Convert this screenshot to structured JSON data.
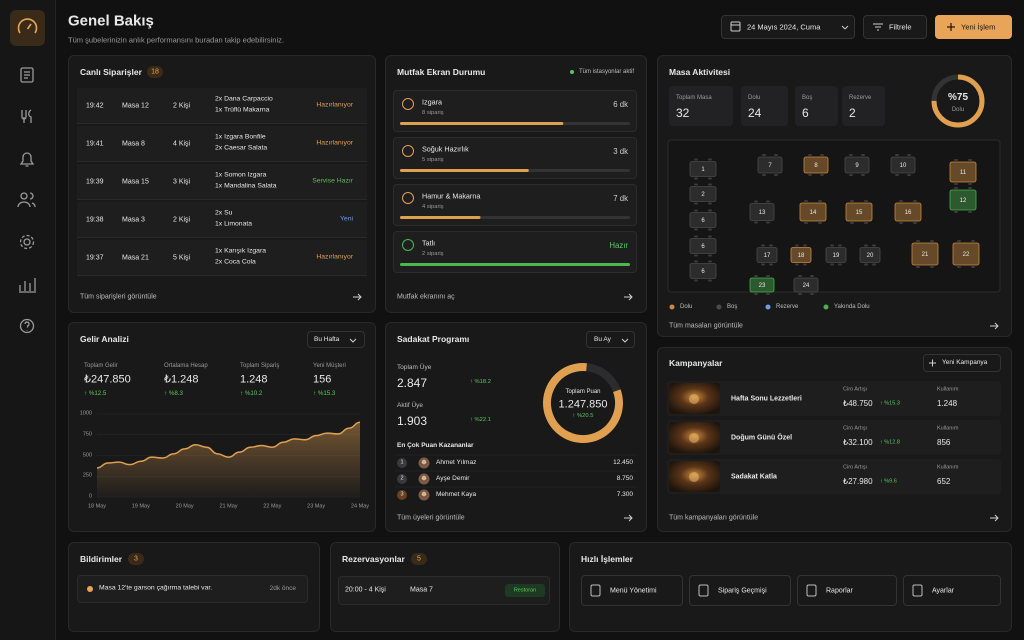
{
  "header": {
    "title": "Genel Bakış",
    "subtitle": "Tüm şubelerinizin anlık performansını buradan takip edebilirsiniz.",
    "date": "24 Mayıs 2024, Cuma",
    "filter": "Filtrele",
    "new_action": "Yeni İşlem"
  },
  "orders": {
    "title": "Canlı Siparişler",
    "count": "18",
    "footer": "Tüm siparişleri görüntüle",
    "rows": [
      {
        "time": "19:42",
        "table": "Masa 12",
        "guests": "2 Kişi",
        "items": [
          "2x Dana Carpaccio",
          "1x Trüflü Makarna"
        ],
        "status": "Hazırlanıyor",
        "status_color": "#e0a050"
      },
      {
        "time": "19:41",
        "table": "Masa 8",
        "guests": "4 Kişi",
        "items": [
          "1x Izgara Bonfile",
          "2x Caesar Salata"
        ],
        "status": "Hazırlanıyor",
        "status_color": "#e0a050"
      },
      {
        "time": "19:39",
        "table": "Masa 15",
        "guests": "3 Kişi",
        "items": [
          "1x Somon Izgara",
          "1x Mandalina Salata"
        ],
        "status": "Servise Hazır",
        "status_color": "#5cbf5c"
      },
      {
        "time": "19:38",
        "table": "Masa 3",
        "guests": "2 Kişi",
        "items": [
          "2x Su",
          "1x Limonata"
        ],
        "status": "Yeni",
        "status_color": "#6a9ee8"
      },
      {
        "time": "19:37",
        "table": "Masa 21",
        "guests": "5 Kişi",
        "items": [
          "1x Karışık Izgara",
          "2x Coca Cola"
        ],
        "status": "Hazırlanıyor",
        "status_color": "#e0a050"
      }
    ]
  },
  "kitchen": {
    "title": "Mutfak Ekran Durumu",
    "status": "Tüm istasyonlar aktif",
    "footer": "Mutfak ekranını aç",
    "stations": [
      {
        "name": "Izgara",
        "orders": "8 sipariş",
        "time": "6 dk",
        "progress": 71,
        "color": "#e0a050",
        "time_color": "#cfcfcf"
      },
      {
        "name": "Soğuk Hazırlık",
        "orders": "5 sipariş",
        "time": "3 dk",
        "progress": 56,
        "color": "#e0a050",
        "time_color": "#cfcfcf"
      },
      {
        "name": "Hamur & Makarna",
        "orders": "4 sipariş",
        "time": "7 dk",
        "progress": 35,
        "color": "#e0a050",
        "time_color": "#cfcfcf"
      },
      {
        "name": "Tatlı",
        "orders": "2 sipariş",
        "time": "Hazır",
        "progress": 100,
        "color": "#4cb84c",
        "time_color": "#5cc85c"
      }
    ]
  },
  "tables_card": {
    "title": "Masa Aktivitesi",
    "footer": "Tüm masaları görüntüle",
    "stats": [
      {
        "label": "Toplam Masa",
        "value": "32"
      },
      {
        "label": "Dolu",
        "value": "24"
      },
      {
        "label": "Boş",
        "value": "6"
      },
      {
        "label": "Rezerve",
        "value": "2"
      }
    ],
    "occupancy": 75,
    "occupancy_label": "%75",
    "occupancy_caption": "Dolu",
    "legend": [
      {
        "label": "Dolu",
        "color": "#c98a3e"
      },
      {
        "label": "Boş",
        "color": "#4a4a4a"
      },
      {
        "label": "Rezerve",
        "color": "#6a9ee8"
      },
      {
        "label": "Yakında Dolu",
        "color": "#4cae4c"
      }
    ],
    "tables": [
      {
        "label": "1",
        "color": "#4a4a4a"
      },
      {
        "label": "2",
        "color": "#4a4a4a"
      },
      {
        "label": "6",
        "color": "#4a4a4a"
      },
      {
        "label": "6",
        "color": "#4a4a4a"
      },
      {
        "label": "6",
        "color": "#4a4a4a"
      },
      {
        "label": "7",
        "color": "#4a4a4a"
      },
      {
        "label": "8",
        "color": "#c98a3e"
      },
      {
        "label": "9",
        "color": "#4a4a4a"
      },
      {
        "label": "10",
        "color": "#4a4a4a"
      },
      {
        "label": "11",
        "color": "#c98a3e"
      },
      {
        "label": "13",
        "color": "#4a4a4a"
      },
      {
        "label": "14",
        "color": "#c98a3e"
      },
      {
        "label": "15",
        "color": "#c98a3e"
      },
      {
        "label": "16",
        "color": "#c98a3e"
      },
      {
        "label": "12",
        "color": "#4cae4c"
      },
      {
        "label": "17",
        "color": "#4a4a4a"
      },
      {
        "label": "18",
        "color": "#c98a3e"
      },
      {
        "label": "19",
        "color": "#4a4a4a"
      },
      {
        "label": "20",
        "color": "#4a4a4a"
      },
      {
        "label": "21",
        "color": "#c98a3e"
      },
      {
        "label": "22",
        "color": "#c98a3e"
      },
      {
        "label": "23",
        "color": "#4cae4c"
      },
      {
        "label": "24",
        "color": "#4a4a4a"
      }
    ]
  },
  "revenue": {
    "title": "Gelir Analizi",
    "period": "Bu Hafta",
    "stats": [
      {
        "label": "Toplam Gelir",
        "value": "₺247.850",
        "change": "↑ %12.5"
      },
      {
        "label": "Ortalama Hesap",
        "value": "₺1.248",
        "change": "↑ %8.3"
      },
      {
        "label": "Toplam Sipariş",
        "value": "1.248",
        "change": "↑ %10.2"
      },
      {
        "label": "Yeni Müşteri",
        "value": "156",
        "change": "↑ %15.3"
      }
    ],
    "chart": {
      "type": "area",
      "color": "#e0a050",
      "ylim": [
        0,
        1000
      ],
      "yticks": [
        0,
        250,
        500,
        750,
        1000
      ],
      "categories": [
        "18 May",
        null,
        null,
        null,
        "19 May",
        null,
        null,
        null,
        "20 May",
        null,
        null,
        null,
        "21 May",
        null,
        null,
        null,
        "22 May",
        null,
        null,
        null,
        "23 May",
        null,
        null,
        null,
        "24 May"
      ],
      "values": [
        350,
        410,
        420,
        390,
        430,
        480,
        470,
        520,
        580,
        630,
        600,
        520,
        480,
        540,
        600,
        620,
        600,
        660,
        700,
        690,
        740,
        770,
        760,
        830,
        900
      ]
    }
  },
  "loyalty": {
    "title": "Sadakat Programı",
    "period": "Bu Ay",
    "footer": "Tüm üyeleri görüntüle",
    "stats": [
      {
        "label": "Toplam Üye",
        "value": "2.847",
        "change": "↑ %18.2"
      },
      {
        "label": "Aktif Üye",
        "value": "1.903",
        "change": "↑ %22.1"
      }
    ],
    "points": {
      "label": "Toplam Puan",
      "value": "1.247.850",
      "change": "↑ %20.5"
    },
    "leaders_title": "En Çok Puan Kazananlar",
    "leaders": [
      {
        "rank": "1",
        "name": "Ahmet Yılmaz",
        "points": "12.450"
      },
      {
        "rank": "2",
        "name": "Ayşe Demir",
        "points": "8.750"
      },
      {
        "rank": "3",
        "name": "Mehmet Kaya",
        "points": "7.300"
      }
    ]
  },
  "campaigns": {
    "title": "Kampanyalar",
    "new": "Yeni Kampanya",
    "footer": "Tüm kampanyaları görüntüle",
    "rows": [
      {
        "name": "Hafta Sonu Lezzetleri",
        "revenue_label": "Ciro Artışı",
        "revenue": "₺48.750",
        "change": "↑ %15.3",
        "usage_label": "Kullanım",
        "usage": "1.248"
      },
      {
        "name": "Doğum Günü Özel",
        "revenue_label": "Ciro Artışı",
        "revenue": "₺32.100",
        "change": "↑ %12.8",
        "usage_label": "Kullanım",
        "usage": "856"
      },
      {
        "name": "Sadakat Katla",
        "revenue_label": "Ciro Artışı",
        "revenue": "₺27.980",
        "change": "↑ %9.6",
        "usage_label": "Kullanım",
        "usage": "652"
      }
    ]
  },
  "notifications": {
    "title": "Bildirimler",
    "count": "3",
    "items": [
      {
        "text": "Masa 12'te garson çağırma talebi var.",
        "time": "2dk önce"
      }
    ]
  },
  "reservations": {
    "title": "Rezervasyonlar",
    "count": "5",
    "items": [
      {
        "time": "20:00 - 4 Kişi",
        "table": "Masa 7",
        "area": "Restoran"
      }
    ]
  },
  "quick": {
    "title": "Hızlı İşlemler",
    "actions": [
      "Menü Yönetimi",
      "Sipariş Geçmişi",
      "Raporlar",
      "Ayarlar"
    ]
  }
}
